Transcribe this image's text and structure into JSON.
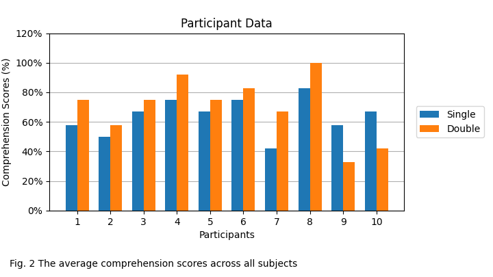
{
  "chart_data": {
    "type": "bar",
    "title": "Participant Data",
    "xlabel": "Participants",
    "ylabel": "Comprehension Scores (%)",
    "categories": [
      "1",
      "2",
      "3",
      "4",
      "5",
      "6",
      "7",
      "8",
      "9",
      "10"
    ],
    "series": [
      {
        "name": "Single",
        "values": [
          0.58,
          0.5,
          0.67,
          0.75,
          0.67,
          0.75,
          0.42,
          0.83,
          0.58,
          0.67
        ]
      },
      {
        "name": "Double",
        "values": [
          0.75,
          0.58,
          0.75,
          0.92,
          0.75,
          0.83,
          0.67,
          1.0,
          0.33,
          0.42
        ]
      }
    ],
    "ylim": [
      0.0,
      1.2
    ],
    "yticks": [
      {
        "value": 0.0,
        "label": "0%"
      },
      {
        "value": 0.2,
        "label": "20%"
      },
      {
        "value": 0.4,
        "label": "40%"
      },
      {
        "value": 0.6,
        "label": "60%"
      },
      {
        "value": 0.8,
        "label": "80%"
      },
      {
        "value": 1.0,
        "label": "100%"
      },
      {
        "value": 1.2,
        "label": "120%"
      }
    ],
    "grid": true,
    "legend": "right",
    "annotations": [
      "Fig. 2 The average comprehension scores across all subjects"
    ]
  }
}
